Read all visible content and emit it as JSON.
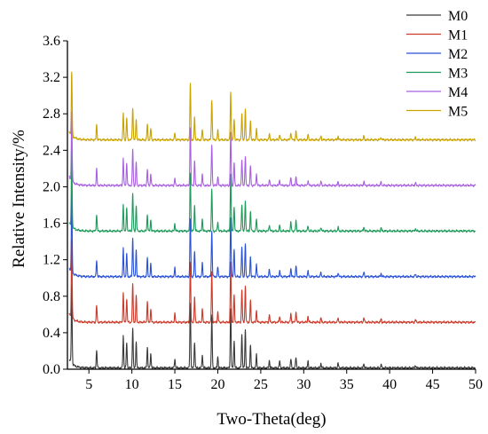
{
  "chart_data": {
    "type": "line",
    "xlabel": "Two-Theta(deg)",
    "ylabel": "Relative Intensity/%",
    "xlim": [
      2.5,
      50
    ],
    "ylim": [
      0,
      3.6
    ],
    "x_ticks": [
      5,
      10,
      15,
      20,
      25,
      30,
      35,
      40,
      45,
      50
    ],
    "y_ticks": [
      0.0,
      0.4,
      0.8,
      1.2,
      1.6,
      2.0,
      2.4,
      2.8,
      3.2,
      3.6
    ],
    "x_tick_labels": [
      "5",
      "10",
      "15",
      "20",
      "25",
      "30",
      "35",
      "40",
      "45",
      "50"
    ],
    "y_tick_labels": [
      "0.0",
      "0.4",
      "0.8",
      "1.2",
      "1.6",
      "2.0",
      "2.4",
      "2.8",
      "3.2",
      "3.6"
    ],
    "legend_position": "top-right",
    "series": [
      {
        "name": "M0",
        "color": "#3a3a3a",
        "offset": 0.0
      },
      {
        "name": "M1",
        "color": "#cc3a2a",
        "offset": 0.5
      },
      {
        "name": "M2",
        "color": "#2a52d6",
        "offset": 1.0
      },
      {
        "name": "M3",
        "color": "#1e9a5a",
        "offset": 1.5
      },
      {
        "name": "M4",
        "color": "#a860e0",
        "offset": 2.0
      },
      {
        "name": "M5",
        "color": "#c9a200",
        "offset": 2.5
      }
    ],
    "peaks": [
      {
        "x": 3.0,
        "h": 0.9
      },
      {
        "x": 5.9,
        "h": 0.2
      },
      {
        "x": 9.0,
        "h": 0.35
      },
      {
        "x": 9.4,
        "h": 0.28
      },
      {
        "x": 10.1,
        "h": 0.45
      },
      {
        "x": 10.5,
        "h": 0.3
      },
      {
        "x": 11.8,
        "h": 0.22
      },
      {
        "x": 12.2,
        "h": 0.15
      },
      {
        "x": 15.0,
        "h": 0.1
      },
      {
        "x": 16.8,
        "h": 0.72
      },
      {
        "x": 17.3,
        "h": 0.3
      },
      {
        "x": 18.2,
        "h": 0.15
      },
      {
        "x": 19.3,
        "h": 0.55
      },
      {
        "x": 20.0,
        "h": 0.12
      },
      {
        "x": 21.5,
        "h": 0.68
      },
      {
        "x": 21.9,
        "h": 0.3
      },
      {
        "x": 22.8,
        "h": 0.35
      },
      {
        "x": 23.2,
        "h": 0.4
      },
      {
        "x": 23.8,
        "h": 0.25
      },
      {
        "x": 24.5,
        "h": 0.15
      },
      {
        "x": 26.0,
        "h": 0.08
      },
      {
        "x": 27.2,
        "h": 0.07
      },
      {
        "x": 28.5,
        "h": 0.1
      },
      {
        "x": 29.1,
        "h": 0.12
      },
      {
        "x": 30.5,
        "h": 0.07
      },
      {
        "x": 32.0,
        "h": 0.05
      },
      {
        "x": 34.0,
        "h": 0.05
      },
      {
        "x": 37.0,
        "h": 0.05
      },
      {
        "x": 39.0,
        "h": 0.04
      },
      {
        "x": 43.0,
        "h": 0.03
      }
    ]
  }
}
